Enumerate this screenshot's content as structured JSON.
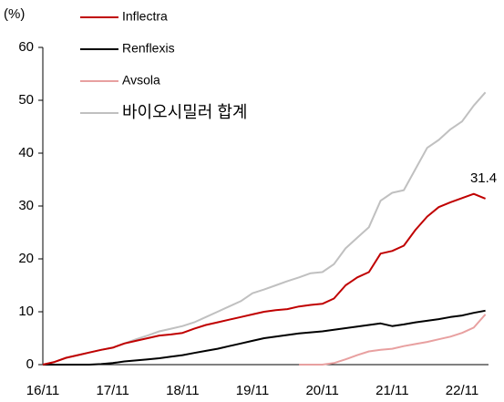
{
  "chart_data": {
    "type": "line",
    "y_label": "(%)",
    "categories": [
      "16/11",
      null,
      null,
      null,
      null,
      null,
      "17/11",
      null,
      null,
      null,
      null,
      null,
      "18/11",
      null,
      null,
      null,
      null,
      null,
      "19/11",
      null,
      null,
      null,
      null,
      null,
      "20/11",
      null,
      null,
      null,
      null,
      null,
      "21/11",
      null,
      null,
      null,
      null,
      null,
      "22/11",
      null,
      null
    ],
    "series": [
      {
        "name": "Inflectra",
        "color": "#c00000",
        "values": [
          0,
          0.5,
          1.3,
          1.8,
          2.3,
          2.8,
          3.2,
          4.0,
          4.5,
          5.0,
          5.5,
          5.7,
          6.0,
          6.8,
          7.5,
          8.0,
          8.5,
          9.0,
          9.5,
          10.0,
          10.3,
          10.5,
          11.0,
          11.3,
          11.5,
          12.5,
          15.0,
          16.5,
          17.5,
          21.0,
          21.5,
          22.5,
          25.5,
          28.0,
          29.8,
          30.7,
          31.5,
          32.3,
          31.4
        ]
      },
      {
        "name": "Renflexis",
        "color": "#000000",
        "values": [
          0,
          0,
          0,
          0,
          0,
          0.1,
          0.3,
          0.6,
          0.8,
          1.0,
          1.2,
          1.5,
          1.8,
          2.2,
          2.6,
          3.0,
          3.5,
          4.0,
          4.5,
          5.0,
          5.3,
          5.6,
          5.9,
          6.1,
          6.3,
          6.6,
          6.9,
          7.2,
          7.5,
          7.8,
          7.3,
          7.6,
          8.0,
          8.3,
          8.6,
          9.0,
          9.3,
          9.8,
          10.2
        ]
      },
      {
        "name": "Avsola",
        "color": "#e8a0a0",
        "values": [
          null,
          null,
          null,
          null,
          null,
          null,
          null,
          null,
          null,
          null,
          null,
          null,
          null,
          null,
          null,
          null,
          null,
          null,
          null,
          null,
          null,
          null,
          0,
          0,
          0,
          0.3,
          1.0,
          1.8,
          2.5,
          2.8,
          3.0,
          3.5,
          3.9,
          4.3,
          4.8,
          5.3,
          6.0,
          7.0,
          9.5
        ]
      },
      {
        "name": "바이오시밀러 합계",
        "color": "#c0c0c0",
        "values": [
          0,
          0.5,
          1.3,
          1.8,
          2.3,
          2.8,
          3.2,
          4.0,
          4.8,
          5.5,
          6.3,
          6.8,
          7.3,
          8.0,
          9.0,
          10.0,
          11.0,
          12.0,
          13.5,
          14.2,
          15.0,
          15.8,
          16.5,
          17.3,
          17.5,
          19.0,
          22.0,
          24.0,
          26.0,
          31.0,
          32.5,
          33.0,
          37.0,
          41.0,
          42.5,
          44.5,
          46.0,
          49.0,
          51.5
        ]
      }
    ],
    "ylim": [
      0,
      60
    ],
    "yticks": [
      0,
      10,
      20,
      30,
      40,
      50,
      60
    ],
    "grid": false,
    "legend": "top-left"
  }
}
